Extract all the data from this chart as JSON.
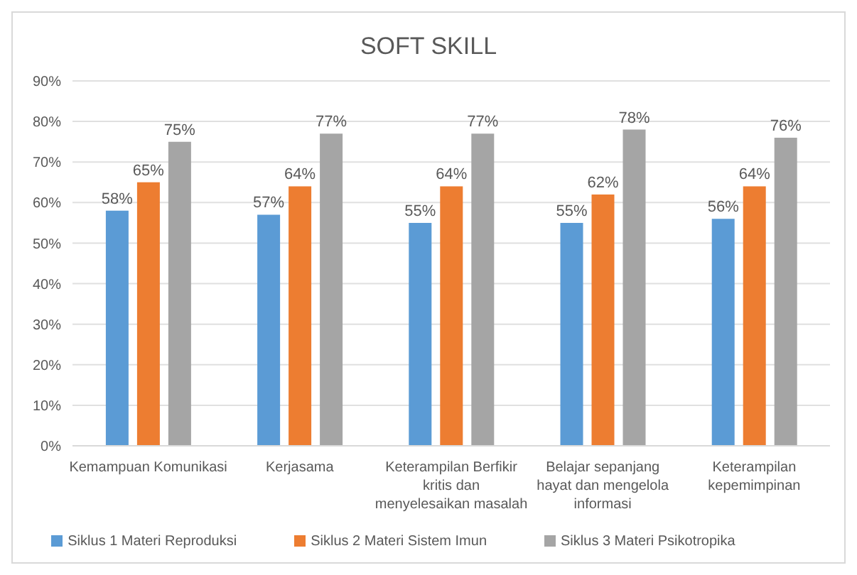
{
  "chart_data": {
    "type": "bar",
    "title": "SOFT SKILL",
    "categories": [
      "Kemampuan Komunikasi",
      "Kerjasama",
      "Keterampilan Berfikir kritis dan menyelesaikan masalah",
      "Belajar sepanjang hayat dan mengelola informasi",
      "Keterampilan kepemimpinan"
    ],
    "series": [
      {
        "name": "Siklus 1 Materi Reproduksi",
        "color": "#5b9bd5",
        "values": [
          58,
          57,
          55,
          55,
          56
        ],
        "value_labels": [
          "58%",
          "57%",
          "55%",
          "55%",
          "56%"
        ]
      },
      {
        "name": "Siklus 2 Materi Sistem Imun",
        "color": "#ed7d31",
        "values": [
          65,
          64,
          64,
          62,
          64
        ],
        "value_labels": [
          "65%",
          "64%",
          "64%",
          "62%",
          "64%"
        ]
      },
      {
        "name": "Siklus 3 Materi Psikotropika",
        "color": "#a5a5a5",
        "values": [
          75,
          77,
          77,
          78,
          76
        ],
        "value_labels": [
          "75%",
          "77%",
          "77%",
          "78%",
          "76%"
        ]
      }
    ],
    "ylim": [
      0,
      90
    ],
    "yticks": [
      {
        "value": 0,
        "label": "0%"
      },
      {
        "value": 10,
        "label": "10%"
      },
      {
        "value": 20,
        "label": "20%"
      },
      {
        "value": 30,
        "label": "30%"
      },
      {
        "value": 40,
        "label": "40%"
      },
      {
        "value": 50,
        "label": "50%"
      },
      {
        "value": 60,
        "label": "60%"
      },
      {
        "value": 70,
        "label": "70%"
      },
      {
        "value": 80,
        "label": "80%"
      },
      {
        "value": 90,
        "label": "90%"
      }
    ],
    "grid": "y",
    "legend": "bottom"
  }
}
